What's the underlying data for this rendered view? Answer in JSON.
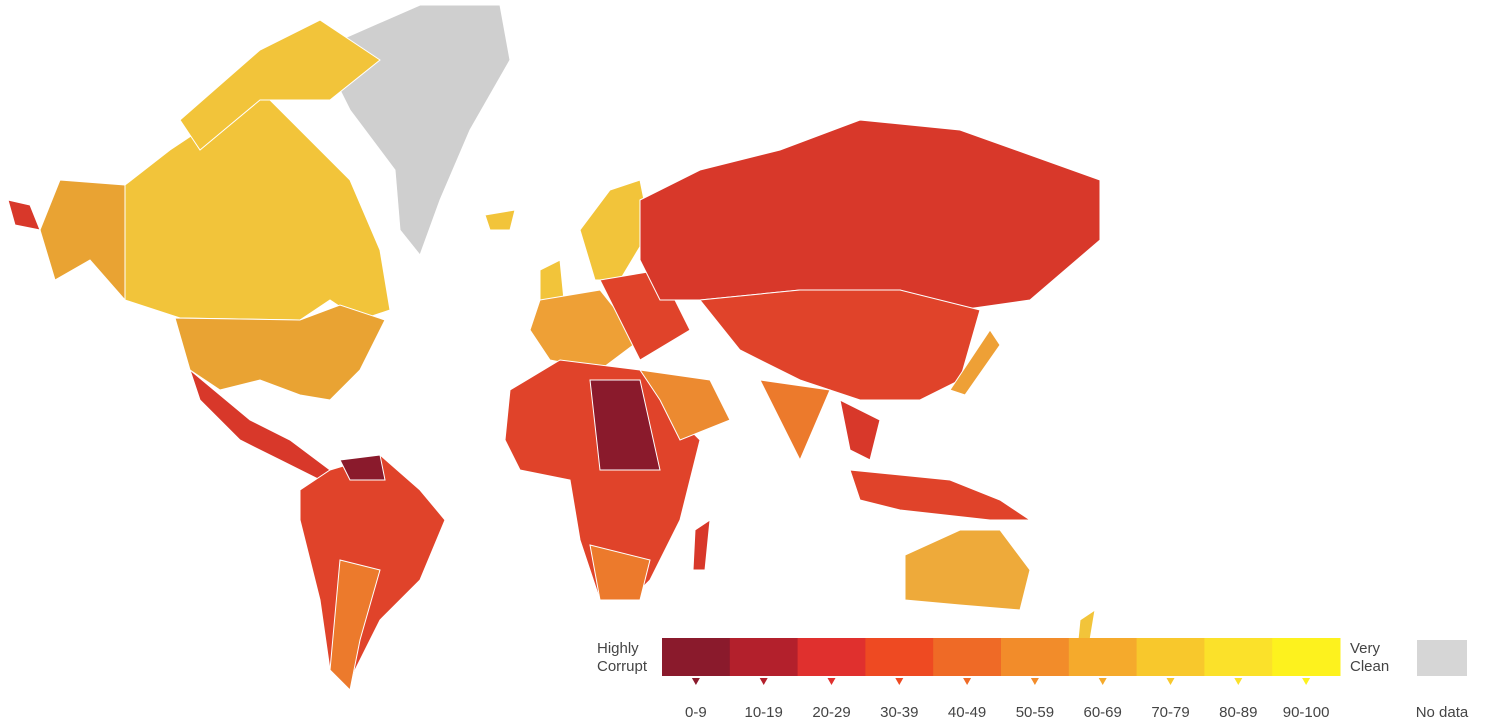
{
  "legend": {
    "low_label": [
      "Highly",
      "Corrupt"
    ],
    "high_label": [
      "Very",
      "Clean"
    ],
    "bins": [
      {
        "label": "0-9",
        "color": "#8a1a2c"
      },
      {
        "label": "10-19",
        "color": "#b3202c"
      },
      {
        "label": "20-29",
        "color": "#e0302e"
      },
      {
        "label": "30-39",
        "color": "#ee4a22"
      },
      {
        "label": "40-49",
        "color": "#ef6a26"
      },
      {
        "label": "50-59",
        "color": "#f28c2a"
      },
      {
        "label": "60-69",
        "color": "#f5aa2c"
      },
      {
        "label": "70-79",
        "color": "#f8c82c"
      },
      {
        "label": "80-89",
        "color": "#fbe12a"
      },
      {
        "label": "90-100",
        "color": "#fdf21e"
      }
    ],
    "no_data": {
      "label": "No data",
      "color": "#d6d6d6"
    }
  }
}
